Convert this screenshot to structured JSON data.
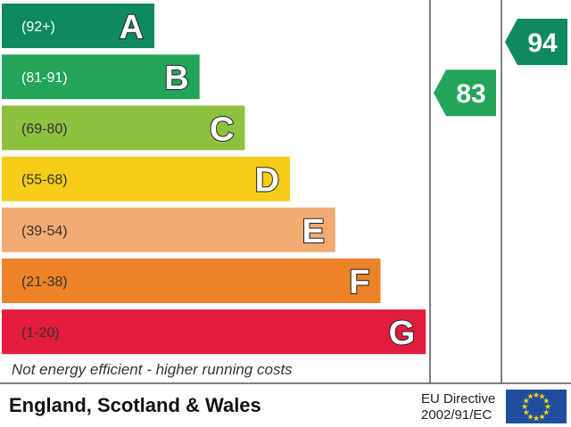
{
  "chart_data": {
    "type": "bar",
    "categories": [
      "A",
      "B",
      "C",
      "D",
      "E",
      "F",
      "G"
    ],
    "bands": [
      {
        "letter": "A",
        "range": "(92+)",
        "color": "#0f8a5f",
        "text_color": "#ffffff"
      },
      {
        "letter": "B",
        "range": "(81-91)",
        "color": "#22a55a",
        "text_color": "#ffffff"
      },
      {
        "letter": "C",
        "range": "(69-80)",
        "color": "#8dc13f",
        "text_color": "#333333"
      },
      {
        "letter": "D",
        "range": "(55-68)",
        "color": "#f5cc17",
        "text_color": "#333333"
      },
      {
        "letter": "E",
        "range": "(39-54)",
        "color": "#f2ab72",
        "text_color": "#333333"
      },
      {
        "letter": "F",
        "range": "(21-38)",
        "color": "#ec8328",
        "text_color": "#333333"
      },
      {
        "letter": "G",
        "range": "(1-20)",
        "color": "#e31c3d",
        "text_color": "#333333"
      }
    ],
    "current": {
      "value": 83,
      "band": "B",
      "color": "#22a55a"
    },
    "potential": {
      "value": 94,
      "band": "A",
      "color": "#0f8a5f"
    },
    "footnote": "Not energy efficient - higher running costs"
  },
  "footer": {
    "region": "England, Scotland & Wales",
    "directive_line1": "EU Directive",
    "directive_line2": "2002/91/EC",
    "flag_color": "#1f4e9c",
    "star_color": "#f7d417",
    "flag_icon": "eu-flag-icon"
  }
}
